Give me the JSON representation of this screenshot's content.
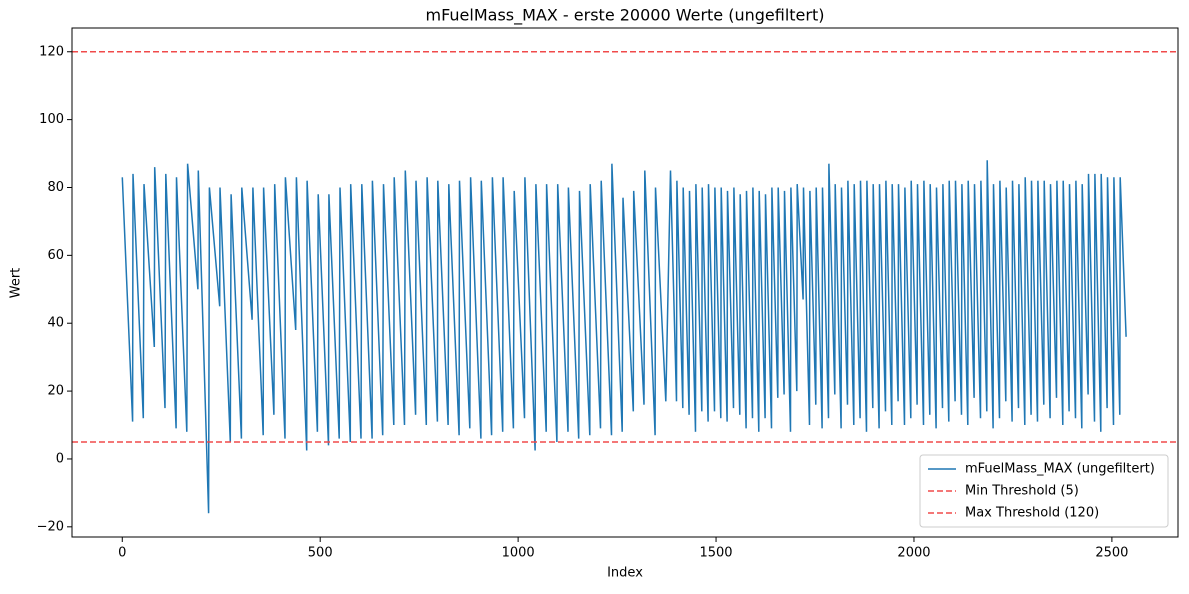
{
  "chart_data": {
    "type": "line",
    "title": "mFuelMass_MAX - erste 20000 Werte (ungefiltert)",
    "x_label": "Index",
    "y_label": "Wert",
    "x": [
      0,
      26,
      27,
      53,
      55,
      81,
      82,
      108,
      110,
      136,
      137,
      163,
      165,
      191,
      192,
      218,
      220,
      246,
      247,
      273,
      275,
      301,
      302,
      328,
      330,
      356,
      357,
      383,
      385,
      411,
      412,
      438,
      440,
      466,
      467,
      493,
      495,
      521,
      522,
      548,
      550,
      576,
      577,
      603,
      605,
      631,
      632,
      658,
      660,
      686,
      687,
      713,
      715,
      741,
      742,
      768,
      770,
      796,
      797,
      823,
      825,
      851,
      852,
      878,
      880,
      906,
      907,
      933,
      935,
      961,
      962,
      988,
      990,
      1016,
      1017,
      1043,
      1045,
      1071,
      1072,
      1098,
      1100,
      1126,
      1127,
      1153,
      1155,
      1181,
      1182,
      1208,
      1210,
      1236,
      1237,
      1263,
      1265,
      1291,
      1292,
      1318,
      1320,
      1346,
      1347,
      1373,
      1385,
      1400,
      1401,
      1416,
      1417,
      1432,
      1433,
      1448,
      1449,
      1464,
      1465,
      1480,
      1481,
      1496,
      1497,
      1512,
      1513,
      1528,
      1529,
      1544,
      1545,
      1560,
      1561,
      1576,
      1577,
      1592,
      1593,
      1608,
      1609,
      1624,
      1625,
      1640,
      1641,
      1656,
      1657,
      1672,
      1673,
      1688,
      1689,
      1704,
      1705,
      1720,
      1721,
      1736,
      1737,
      1752,
      1753,
      1768,
      1769,
      1784,
      1785,
      1800,
      1801,
      1816,
      1817,
      1832,
      1833,
      1848,
      1849,
      1864,
      1865,
      1880,
      1881,
      1896,
      1897,
      1912,
      1913,
      1928,
      1929,
      1944,
      1945,
      1960,
      1961,
      1976,
      1977,
      1992,
      1993,
      2008,
      2009,
      2024,
      2025,
      2040,
      2041,
      2056,
      2057,
      2072,
      2073,
      2088,
      2089,
      2104,
      2105,
      2120,
      2121,
      2136,
      2137,
      2152,
      2153,
      2168,
      2169,
      2184,
      2185,
      2200,
      2201,
      2216,
      2217,
      2232,
      2233,
      2248,
      2249,
      2264,
      2265,
      2280,
      2281,
      2296,
      2297,
      2312,
      2313,
      2328,
      2329,
      2344,
      2345,
      2360,
      2361,
      2376,
      2377,
      2392,
      2393,
      2408,
      2409,
      2424,
      2425,
      2440,
      2441,
      2456,
      2457,
      2472,
      2473,
      2488,
      2489,
      2504,
      2505,
      2520,
      2521,
      2536
    ],
    "series": [
      {
        "name": "mFuelMass_MAX (ungefiltert)",
        "color": "#1f77b4",
        "values": [
          83,
          11,
          84,
          12,
          81,
          33,
          86,
          15,
          84,
          9,
          83,
          8,
          87,
          50,
          85,
          -16,
          80,
          45,
          80,
          5,
          78,
          6,
          80,
          41,
          80,
          7,
          80,
          13,
          81,
          6,
          83,
          38,
          83,
          2.5,
          82,
          8,
          78,
          4,
          78,
          6,
          80,
          5,
          81,
          6,
          81,
          6,
          82,
          7,
          81,
          10,
          83,
          10,
          85,
          13,
          82,
          10,
          83,
          11,
          82,
          10,
          81,
          7,
          82,
          9,
          83,
          6,
          82,
          7,
          83,
          8,
          83,
          9,
          79,
          12,
          83,
          2.5,
          81,
          8,
          81,
          5,
          81,
          8,
          80,
          6,
          79,
          7,
          81,
          9,
          82,
          7,
          87,
          8,
          77,
          14,
          79,
          16,
          85,
          7,
          80,
          17,
          85,
          17,
          82,
          15,
          80,
          13,
          79,
          8,
          81,
          14,
          80,
          11,
          81,
          14,
          80,
          12,
          80,
          11,
          79,
          15,
          80,
          13,
          78,
          9,
          79,
          12,
          80,
          8,
          79,
          12,
          78,
          9,
          80,
          18,
          80,
          19,
          79,
          8,
          80,
          20,
          81,
          47,
          80,
          10,
          79,
          16,
          80,
          9,
          80,
          12,
          87,
          19,
          81,
          9,
          80,
          16,
          82,
          10,
          81,
          12,
          82,
          8,
          82,
          15,
          81,
          9,
          81,
          14,
          82,
          10,
          81,
          17,
          81,
          10,
          80,
          12,
          82,
          16,
          81,
          10,
          82,
          13,
          81,
          9,
          80,
          15,
          81,
          11,
          82,
          17,
          82,
          13,
          81,
          10,
          82,
          18,
          81,
          12,
          82,
          14,
          88,
          9,
          81,
          12,
          82,
          17,
          80,
          11,
          82,
          15,
          81,
          10,
          83,
          13,
          82,
          11,
          82,
          16,
          82,
          12,
          81,
          18,
          82,
          10,
          82,
          14,
          81,
          12,
          82,
          9,
          81,
          19,
          84,
          11,
          84,
          8,
          84,
          15,
          83,
          10,
          83,
          13,
          83,
          36
        ]
      }
    ],
    "thresholds": [
      {
        "name": "Min Threshold (5)",
        "value": 5,
        "color": "#f04a4a"
      },
      {
        "name": "Max Threshold (120)",
        "value": 120,
        "color": "#f04a4a"
      }
    ],
    "xlim": [
      -127,
      2667
    ],
    "ylim": [
      -23,
      127
    ],
    "xticks": [
      0,
      500,
      1000,
      1500,
      2000,
      2500
    ],
    "yticks": [
      {
        "value": -20,
        "label": "−20"
      },
      0,
      20,
      40,
      60,
      80,
      100,
      120
    ],
    "legend": "lower right"
  }
}
